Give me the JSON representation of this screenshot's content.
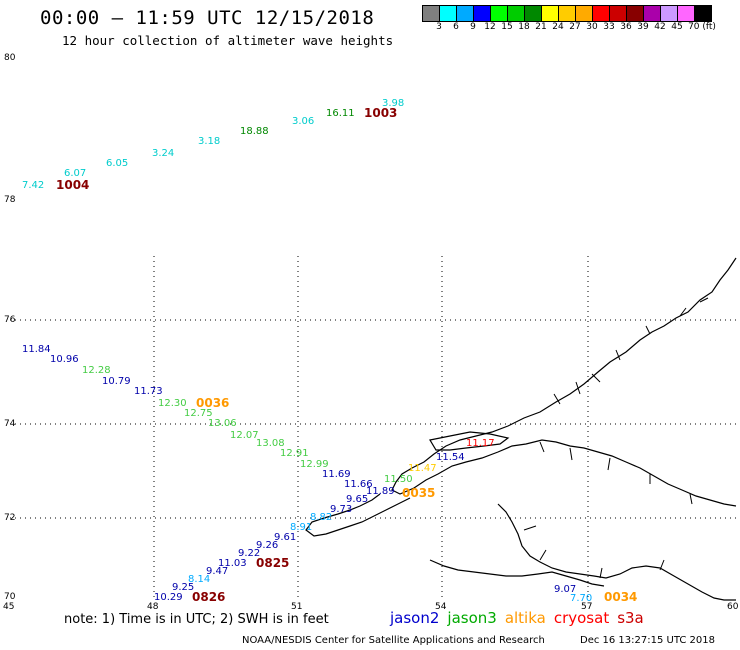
{
  "header": {
    "title": "00:00 – 11:59 UTC 12/15/2018",
    "subtitle": "12 hour collection of altimeter wave heights"
  },
  "colorbar": {
    "colors": [
      "#7f7f7f",
      "#00ffff",
      "#00aaff",
      "#0000ff",
      "#00ff00",
      "#00cc00",
      "#008800",
      "#ffff00",
      "#ffcc00",
      "#ffaa00",
      "#ff0000",
      "#cc0000",
      "#880000",
      "#aa00aa",
      "#cc99ff",
      "#ff66ff",
      "#000000"
    ],
    "labels": [
      "3",
      "6",
      "9",
      "12",
      "15",
      "18",
      "21",
      "24",
      "27",
      "30",
      "33",
      "36",
      "39",
      "42",
      "45",
      "70 (ft)"
    ]
  },
  "map": {
    "lat_labels_left": [
      "80",
      "78",
      "76",
      "74",
      "72",
      "70"
    ],
    "lon_labels_bottom": [
      "45",
      "48",
      "51",
      "54",
      "57",
      "60"
    ],
    "track_north": {
      "points": [
        {
          "v": "7.42",
          "c": "#00cccc"
        },
        {
          "v": "6.07",
          "c": "#00cccc"
        },
        {
          "v": "6.05",
          "c": "#00cccc"
        },
        {
          "v": "3.24",
          "c": "#00cccc"
        },
        {
          "v": "3.18",
          "c": "#00cccc"
        },
        {
          "v": "18.88",
          "c": "#008800"
        },
        {
          "v": "3.06",
          "c": "#00cccc"
        },
        {
          "v": "16.11",
          "c": "#008800"
        },
        {
          "v": "3.98",
          "c": "#00cccc"
        }
      ],
      "ids": [
        {
          "v": "1004",
          "c": "#880000"
        },
        {
          "v": "1003",
          "c": "#880000"
        }
      ]
    },
    "track_west": {
      "points": [
        {
          "v": "11.84",
          "c": "#0000aa"
        },
        {
          "v": "10.96",
          "c": "#0000aa"
        },
        {
          "v": "12.28",
          "c": "#44cc44"
        },
        {
          "v": "10.79",
          "c": "#0000aa"
        },
        {
          "v": "11.73",
          "c": "#0000aa"
        },
        {
          "v": "12.30",
          "c": "#44cc44"
        },
        {
          "v": "12.75",
          "c": "#44cc44"
        },
        {
          "v": "13.06",
          "c": "#44cc44"
        },
        {
          "v": "12.07",
          "c": "#44cc44"
        },
        {
          "v": "13.08",
          "c": "#44cc44"
        },
        {
          "v": "12.91",
          "c": "#44cc44"
        },
        {
          "v": "12.99",
          "c": "#44cc44"
        },
        {
          "v": "11.69",
          "c": "#0000aa"
        },
        {
          "v": "11.66",
          "c": "#0000aa"
        },
        {
          "v": "11.89",
          "c": "#0000aa"
        },
        {
          "v": "9.65",
          "c": "#0000aa"
        },
        {
          "v": "9.73",
          "c": "#0000aa"
        },
        {
          "v": "8.82",
          "c": "#00aaff"
        },
        {
          "v": "8.91",
          "c": "#00aaff"
        },
        {
          "v": "9.61",
          "c": "#0000aa"
        },
        {
          "v": "9.26",
          "c": "#0000aa"
        },
        {
          "v": "9.22",
          "c": "#0000aa"
        },
        {
          "v": "11.03",
          "c": "#0000aa"
        },
        {
          "v": "9.47",
          "c": "#0000aa"
        },
        {
          "v": "8.14",
          "c": "#00aaff"
        },
        {
          "v": "9.25",
          "c": "#0000aa"
        },
        {
          "v": "10.29",
          "c": "#0000aa"
        }
      ],
      "ids": [
        {
          "v": "0036",
          "c": "#ff9900"
        },
        {
          "v": "0035",
          "c": "#ff9900"
        },
        {
          "v": "0825",
          "c": "#880000"
        },
        {
          "v": "0826",
          "c": "#880000"
        }
      ]
    },
    "track_east": {
      "points": [
        {
          "v": "11.17",
          "c": "#ff0000"
        },
        {
          "v": "11.54",
          "c": "#0000aa"
        },
        {
          "v": "11.47",
          "c": "#ffcc00"
        },
        {
          "v": "11.50",
          "c": "#44cc44"
        },
        {
          "v": "9.07",
          "c": "#0000aa"
        },
        {
          "v": "7.70",
          "c": "#00aaff"
        }
      ],
      "ids": [
        {
          "v": "0034",
          "c": "#ff9900"
        }
      ]
    }
  },
  "footer": {
    "note": "note: 1) Time is in UTC; 2) SWH is in feet",
    "legend": [
      {
        "name": "jason2",
        "color": "#0000cc"
      },
      {
        "name": "jason3",
        "color": "#00aa00"
      },
      {
        "name": "altika",
        "color": "#ff9900"
      },
      {
        "name": "cryosat",
        "color": "#ff0000"
      },
      {
        "name": "s3a",
        "color": "#cc0000"
      }
    ],
    "credit": "NOAA/NESDIS Center for Satellite Applications and Research",
    "timestamp": "Dec 16 13:27:15 UTC 2018"
  }
}
